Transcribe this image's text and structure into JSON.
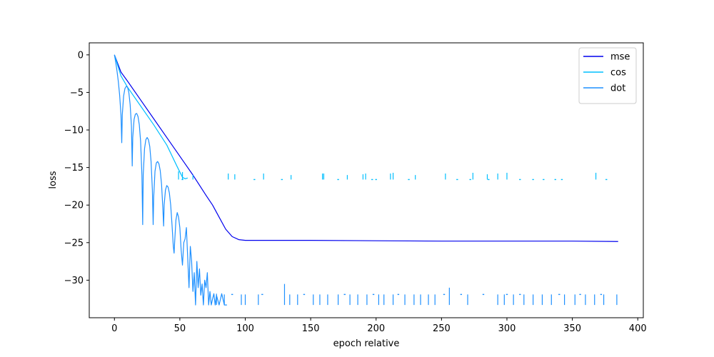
{
  "chart_data": {
    "type": "line",
    "title": "",
    "xlabel": "epoch relative",
    "ylabel": "loss",
    "xlim": [
      -19.25,
      404.25
    ],
    "ylim": [
      -35.0,
      1.6
    ],
    "xticks": [
      0,
      50,
      100,
      150,
      200,
      250,
      300,
      350,
      400
    ],
    "yticks": [
      0,
      -5,
      -10,
      -15,
      -20,
      -25,
      -30
    ],
    "xtick_labels": [
      "0",
      "50",
      "100",
      "150",
      "200",
      "250",
      "300",
      "350",
      "400"
    ],
    "ytick_labels": [
      "0",
      "−5",
      "−10",
      "−15",
      "−20",
      "−25",
      "−30"
    ],
    "grid": false,
    "legend_position": "top-right",
    "series": [
      {
        "name": "mse",
        "color": "#0000ee",
        "points": [
          [
            0,
            0
          ],
          [
            5,
            -2.3
          ],
          [
            10,
            -3.5
          ],
          [
            20,
            -6.0
          ],
          [
            30,
            -8.5
          ],
          [
            40,
            -11.0
          ],
          [
            50,
            -13.5
          ],
          [
            60,
            -16.0
          ],
          [
            70,
            -18.7
          ],
          [
            75,
            -20.0
          ],
          [
            80,
            -21.6
          ],
          [
            85,
            -23.2
          ],
          [
            90,
            -24.2
          ],
          [
            95,
            -24.6
          ],
          [
            100,
            -24.7
          ],
          [
            150,
            -24.7
          ],
          [
            200,
            -24.75
          ],
          [
            250,
            -24.8
          ],
          [
            300,
            -24.8
          ],
          [
            350,
            -24.8
          ],
          [
            385,
            -24.85
          ]
        ]
      },
      {
        "name": "cos",
        "color": "#00bfff",
        "points": [
          [
            0,
            0
          ],
          [
            5,
            -2.8
          ],
          [
            10,
            -4.3
          ],
          [
            20,
            -6.8
          ],
          [
            30,
            -9.3
          ],
          [
            40,
            -12.0
          ],
          [
            48,
            -14.9
          ],
          [
            50,
            -15.6
          ],
          [
            52,
            -16.3
          ],
          [
            54,
            -16.5
          ],
          [
            56,
            -16.4
          ]
        ],
        "spikes": [
          [
            49,
            -16.6,
            -15.5
          ],
          [
            52,
            -16.6,
            -15.6
          ],
          [
            60,
            -16.6,
            -16.0
          ],
          [
            87,
            -16.6,
            -15.8
          ],
          [
            92,
            -16.6,
            -15.9
          ],
          [
            114,
            -16.6,
            -15.8
          ],
          [
            135,
            -16.6,
            -16.0
          ],
          [
            159,
            -16.6,
            -15.8
          ],
          [
            160,
            -16.6,
            -15.8
          ],
          [
            178,
            -16.6,
            -16.0
          ],
          [
            190,
            -16.6,
            -15.9
          ],
          [
            192,
            -16.6,
            -15.8
          ],
          [
            211,
            -16.6,
            -15.8
          ],
          [
            213,
            -16.6,
            -15.7
          ],
          [
            230,
            -16.6,
            -16.0
          ],
          [
            253,
            -16.6,
            -15.8
          ],
          [
            274,
            -16.6,
            -15.7
          ],
          [
            285,
            -16.6,
            -15.9
          ],
          [
            293,
            -16.6,
            -15.8
          ],
          [
            300,
            -16.6,
            -15.7
          ],
          [
            368,
            -16.6,
            -15.7
          ]
        ],
        "ticks": [
          [
            52,
            -16.6
          ],
          [
            107,
            -16.6
          ],
          [
            128,
            -16.6
          ],
          [
            171,
            -16.6
          ],
          [
            197,
            -16.6
          ],
          [
            200,
            -16.6
          ],
          [
            225,
            -16.6
          ],
          [
            262,
            -16.6
          ],
          [
            272,
            -16.6
          ],
          [
            286,
            -16.6
          ],
          [
            310,
            -16.6
          ],
          [
            320,
            -16.6
          ],
          [
            328,
            -16.6
          ],
          [
            337,
            -16.6
          ],
          [
            342,
            -16.6
          ],
          [
            376,
            -16.6
          ]
        ]
      },
      {
        "name": "dot",
        "color": "#1e90ff",
        "points": [
          [
            0,
            0
          ],
          [
            1,
            -1.0
          ],
          [
            2,
            -2.2
          ],
          [
            3,
            -3.6
          ],
          [
            4,
            -5.4
          ],
          [
            5,
            -8.0
          ],
          [
            5.6,
            -11.7
          ],
          [
            6,
            -8.0
          ],
          [
            7,
            -5.5
          ],
          [
            8,
            -4.5
          ],
          [
            9,
            -4.2
          ],
          [
            10,
            -4.3
          ],
          [
            11,
            -5.0
          ],
          [
            12,
            -6.6
          ],
          [
            13,
            -9.5
          ],
          [
            13.6,
            -14.8
          ],
          [
            14,
            -11.0
          ],
          [
            15,
            -8.6
          ],
          [
            16,
            -7.9
          ],
          [
            17,
            -7.8
          ],
          [
            18,
            -8.2
          ],
          [
            19,
            -9.3
          ],
          [
            20,
            -11.5
          ],
          [
            21,
            -16.0
          ],
          [
            21.6,
            -22.6
          ],
          [
            22,
            -16.0
          ],
          [
            23,
            -12.5
          ],
          [
            24,
            -11.3
          ],
          [
            25,
            -11.0
          ],
          [
            26,
            -11.3
          ],
          [
            27,
            -12.2
          ],
          [
            28,
            -14.2
          ],
          [
            29,
            -18.0
          ],
          [
            29.6,
            -22.6
          ],
          [
            30,
            -19.0
          ],
          [
            31,
            -15.5
          ],
          [
            32,
            -14.4
          ],
          [
            33,
            -14.2
          ],
          [
            34,
            -14.5
          ],
          [
            35,
            -15.4
          ],
          [
            36,
            -17.2
          ],
          [
            37,
            -20.4
          ],
          [
            37.6,
            -22.8
          ],
          [
            38,
            -20.0
          ],
          [
            39,
            -18.0
          ],
          [
            40,
            -17.4
          ],
          [
            41,
            -17.6
          ],
          [
            42,
            -18.4
          ],
          [
            43,
            -20.0
          ],
          [
            44,
            -22.6
          ],
          [
            45,
            -25.5
          ],
          [
            45.6,
            -26.4
          ],
          [
            46,
            -25.0
          ],
          [
            47,
            -22.0
          ],
          [
            48,
            -21.0
          ],
          [
            49,
            -21.6
          ],
          [
            50,
            -23.0
          ],
          [
            51,
            -26.0
          ],
          [
            52,
            -28.0
          ],
          [
            53,
            -25.0
          ],
          [
            54,
            -24.5
          ],
          [
            55,
            -23.0
          ],
          [
            56,
            -27.0
          ],
          [
            57,
            -31.0
          ],
          [
            58,
            -25.5
          ],
          [
            59,
            -27.5
          ],
          [
            60,
            -31.5
          ],
          [
            61,
            -29.0
          ],
          [
            62,
            -33.3
          ],
          [
            63,
            -27.5
          ],
          [
            64,
            -31.0
          ],
          [
            65,
            -28.5
          ],
          [
            66,
            -32.0
          ],
          [
            67,
            -30.5
          ],
          [
            68,
            -33.3
          ],
          [
            69,
            -30.0
          ],
          [
            70,
            -31.0
          ],
          [
            71,
            -29.0
          ],
          [
            72,
            -33.3
          ],
          [
            73,
            -31.5
          ],
          [
            74,
            -33.3
          ],
          [
            75,
            -32.5
          ],
          [
            76,
            -31.8
          ],
          [
            77,
            -33.3
          ],
          [
            78,
            -32.0
          ],
          [
            80,
            -33.3
          ],
          [
            82,
            -31.8
          ],
          [
            84,
            -33.3
          ],
          [
            86,
            -33.3
          ]
        ],
        "spikes": [
          [
            78,
            -33.3,
            -31.8
          ],
          [
            84,
            -33.3,
            -31.9
          ],
          [
            97,
            -33.3,
            -31.9
          ],
          [
            100,
            -33.3,
            -31.9
          ],
          [
            110,
            -33.3,
            -31.9
          ],
          [
            130,
            -33.3,
            -30.5
          ],
          [
            134,
            -33.3,
            -31.9
          ],
          [
            140,
            -33.3,
            -31.9
          ],
          [
            152,
            -33.3,
            -31.9
          ],
          [
            157,
            -33.3,
            -31.9
          ],
          [
            163,
            -33.3,
            -31.9
          ],
          [
            171,
            -33.3,
            -31.9
          ],
          [
            180,
            -33.3,
            -31.9
          ],
          [
            186,
            -33.3,
            -31.9
          ],
          [
            193,
            -33.3,
            -31.9
          ],
          [
            202,
            -33.3,
            -31.9
          ],
          [
            206,
            -33.3,
            -31.9
          ],
          [
            213,
            -33.3,
            -31.9
          ],
          [
            222,
            -33.3,
            -31.9
          ],
          [
            229,
            -33.3,
            -31.9
          ],
          [
            234,
            -33.3,
            -31.9
          ],
          [
            240,
            -33.3,
            -31.9
          ],
          [
            245,
            -33.3,
            -31.9
          ],
          [
            256,
            -33.3,
            -31.0
          ],
          [
            270,
            -33.3,
            -31.9
          ],
          [
            293,
            -33.3,
            -31.9
          ],
          [
            298,
            -33.3,
            -31.9
          ],
          [
            305,
            -33.3,
            -31.9
          ],
          [
            313,
            -33.3,
            -31.9
          ],
          [
            320,
            -33.3,
            -31.9
          ],
          [
            327,
            -33.3,
            -31.9
          ],
          [
            334,
            -33.3,
            -31.9
          ],
          [
            344,
            -33.3,
            -31.9
          ],
          [
            352,
            -33.3,
            -31.9
          ],
          [
            360,
            -33.3,
            -31.9
          ],
          [
            367,
            -33.3,
            -31.9
          ],
          [
            374,
            -33.3,
            -31.9
          ],
          [
            384,
            -33.3,
            -31.9
          ]
        ],
        "ticks": [
          [
            90,
            -31.9
          ],
          [
            113,
            -31.9
          ],
          [
            145,
            -31.9
          ],
          [
            176,
            -31.9
          ],
          [
            198,
            -31.9
          ],
          [
            217,
            -31.9
          ],
          [
            252,
            -31.9
          ],
          [
            265,
            -31.9
          ],
          [
            282,
            -31.9
          ],
          [
            300,
            -31.9
          ],
          [
            310,
            -31.9
          ],
          [
            340,
            -31.9
          ],
          [
            356,
            -31.9
          ],
          [
            372,
            -31.9
          ]
        ]
      }
    ]
  }
}
